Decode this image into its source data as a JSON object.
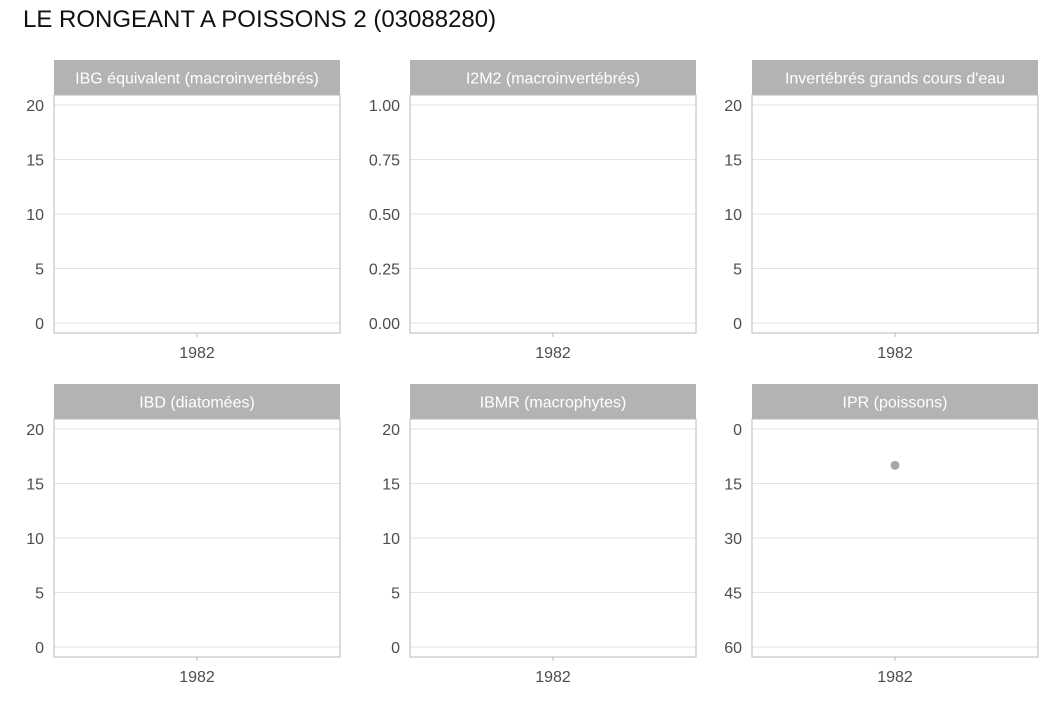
{
  "page": {
    "title": "LE RONGEANT A POISSONS 2 (03088280)"
  },
  "colors": {
    "strip_fill": "#b3b3b3",
    "strip_text": "#ffffff",
    "grid": "#e3e3e3",
    "panel_border": "#b8b8b8",
    "axis_text": "#4d4d4d",
    "point": "#a6a6a6"
  },
  "chart_data": [
    {
      "type": "scatter",
      "title": "IBG équivalent (macroinvertébrés)",
      "x_ticks": [
        "1982"
      ],
      "y_ticks": [
        "0",
        "5",
        "10",
        "15",
        "20"
      ],
      "ylim": [
        0,
        20
      ],
      "y_reversed": false,
      "grid": true,
      "points": []
    },
    {
      "type": "scatter",
      "title": "I2M2 (macroinvertébrés)",
      "x_ticks": [
        "1982"
      ],
      "y_ticks": [
        "0.00",
        "0.25",
        "0.50",
        "0.75",
        "1.00"
      ],
      "ylim": [
        0,
        1
      ],
      "y_reversed": false,
      "grid": true,
      "points": []
    },
    {
      "type": "scatter",
      "title": "Invertébrés grands cours d'eau",
      "x_ticks": [
        "1982"
      ],
      "y_ticks": [
        "0",
        "5",
        "10",
        "15",
        "20"
      ],
      "ylim": [
        0,
        20
      ],
      "y_reversed": false,
      "grid": true,
      "points": []
    },
    {
      "type": "scatter",
      "title": "IBD (diatomées)",
      "x_ticks": [
        "1982"
      ],
      "y_ticks": [
        "0",
        "5",
        "10",
        "15",
        "20"
      ],
      "ylim": [
        0,
        20
      ],
      "y_reversed": false,
      "grid": true,
      "points": []
    },
    {
      "type": "scatter",
      "title": "IBMR (macrophytes)",
      "x_ticks": [
        "1982"
      ],
      "y_ticks": [
        "0",
        "5",
        "10",
        "15",
        "20"
      ],
      "ylim": [
        0,
        20
      ],
      "y_reversed": false,
      "grid": true,
      "points": []
    },
    {
      "type": "scatter",
      "title": "IPR (poissons)",
      "x_ticks": [
        "1982"
      ],
      "y_ticks": [
        "0",
        "15",
        "30",
        "45",
        "60"
      ],
      "ylim": [
        0,
        60
      ],
      "y_reversed": true,
      "grid": true,
      "points": [
        {
          "x": "1982",
          "y": 10
        }
      ]
    }
  ]
}
